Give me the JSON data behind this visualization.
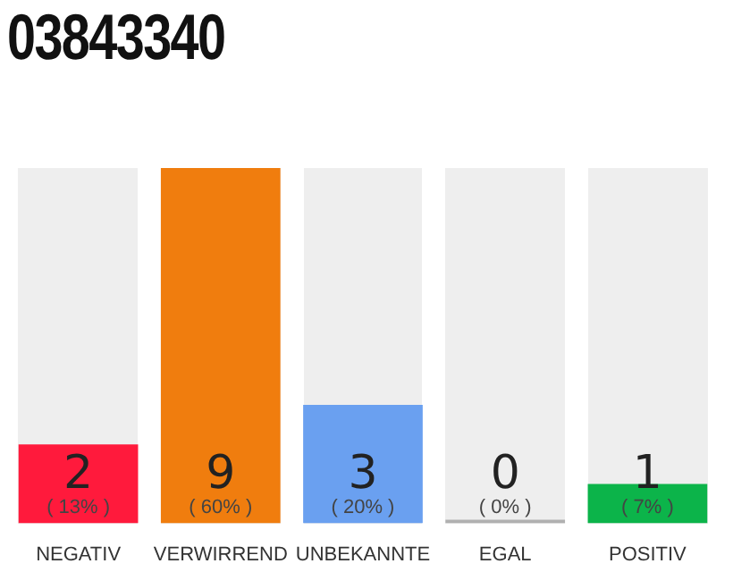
{
  "chart_data": {
    "type": "bar",
    "title": "03843340",
    "categories": [
      "NEGATIV",
      "VERWIRREND",
      "UNBEKANNTE",
      "EGAL",
      "POSITIV"
    ],
    "values": [
      2,
      9,
      3,
      0,
      1
    ],
    "colors": [
      "#ff1a3c",
      "#f07d0e",
      "#6aa0f0",
      "#b0b0b0",
      "#0cb44a"
    ],
    "ylim": [
      0,
      9
    ],
    "data_labels": true,
    "annotations": [
      "( 13% )",
      "( 60% )",
      "( 20% )",
      "( 0% )",
      "( 7% )"
    ]
  }
}
